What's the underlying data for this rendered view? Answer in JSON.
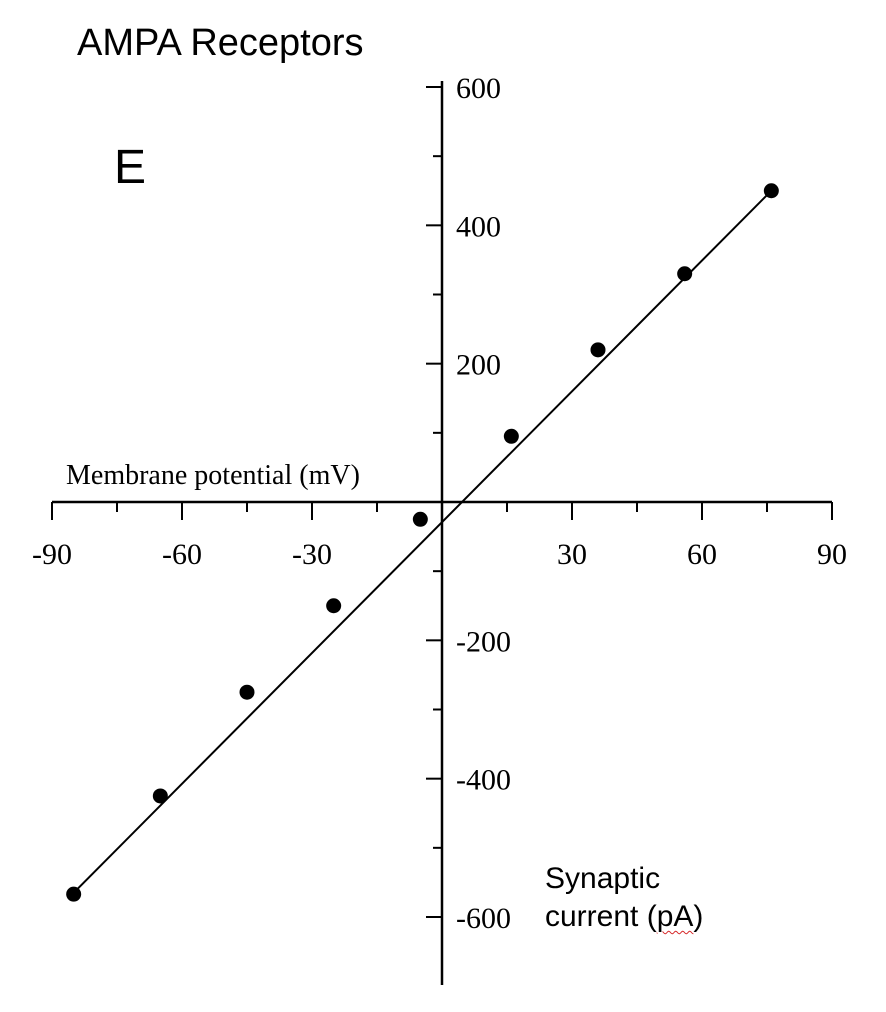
{
  "title": "AMPA Receptors",
  "panel_label": "E",
  "chart_data": {
    "type": "scatter",
    "title": "AMPA Receptors",
    "xlabel": "Membrane potential (mV)",
    "ylabel_lines": [
      "Synaptic",
      "current (pA)"
    ],
    "ylabel_marked_word": "pA",
    "xlim": [
      -90,
      90
    ],
    "ylim": [
      -600,
      600
    ],
    "x_ticks": [
      -90,
      -60,
      -30,
      30,
      60,
      90
    ],
    "y_ticks": [
      600,
      400,
      200,
      -200,
      -400,
      -600
    ],
    "x_minor_step": 15,
    "y_minor_step": 100,
    "grid": false,
    "fit_line": {
      "x": [
        -85,
        76
      ],
      "y": [
        -565,
        450
      ]
    },
    "series": [
      {
        "x": [
          -85,
          -65,
          -45,
          -25,
          -5,
          16,
          36,
          56,
          76
        ],
        "y": [
          -567,
          -425,
          -275,
          -150,
          -25,
          95,
          220,
          330,
          450
        ]
      }
    ],
    "colors": {
      "ink": "#000000",
      "spellcheck": "#d62728"
    }
  }
}
